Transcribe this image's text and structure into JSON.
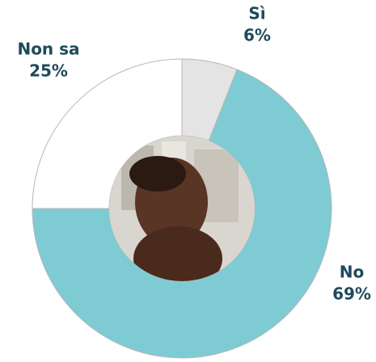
{
  "chart_data": {
    "type": "donut",
    "categories": [
      "Sì",
      "No",
      "Non sa"
    ],
    "values": [
      6,
      69,
      25
    ],
    "value_labels": [
      "6%",
      "69%",
      "25%"
    ],
    "colors": [
      "#e4e4e4",
      "#7ecbd3",
      "#ffffff"
    ]
  }
}
